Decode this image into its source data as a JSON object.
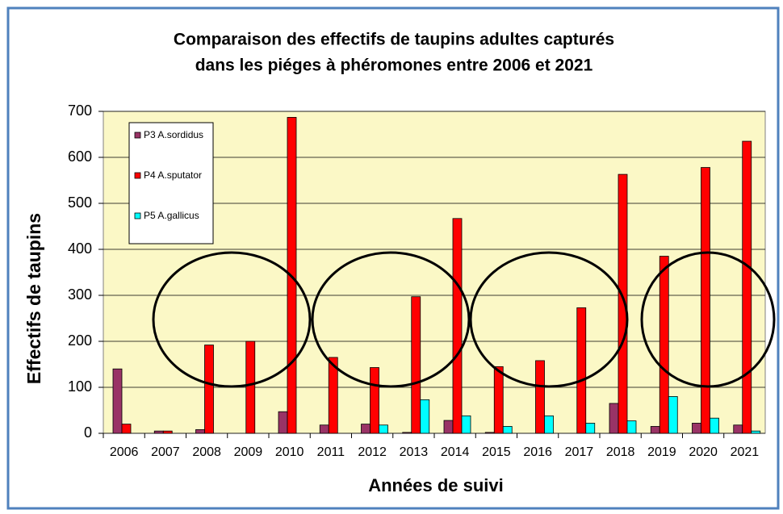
{
  "chart_data": {
    "type": "bar",
    "title_lines": [
      "Comparaison des effectifs de taupins adultes capturés",
      "dans les piéges à phéromones entre 2006 et 2021"
    ],
    "x_label": "Années de suivi",
    "y_label": "Effectifs de taupins",
    "categories": [
      "2006",
      "2007",
      "2008",
      "2009",
      "2010",
      "2011",
      "2012",
      "2013",
      "2014",
      "2015",
      "2016",
      "2017",
      "2018",
      "2019",
      "2020",
      "2021"
    ],
    "series": [
      {
        "name": "P3 A.sordidus",
        "color": "#993366",
        "values": [
          140,
          5,
          8,
          0,
          47,
          18,
          20,
          2,
          28,
          2,
          0,
          0,
          65,
          15,
          22,
          18
        ]
      },
      {
        "name": "P4 A.sputator",
        "color": "#ff0000",
        "values": [
          20,
          5,
          192,
          200,
          687,
          165,
          143,
          297,
          467,
          145,
          158,
          273,
          563,
          385,
          578,
          635
        ]
      },
      {
        "name": "P5 A.gallicus",
        "color": "#00ffff",
        "values": [
          0,
          0,
          0,
          0,
          0,
          0,
          18,
          73,
          38,
          15,
          38,
          22,
          27,
          80,
          33,
          5
        ]
      }
    ],
    "ylim": [
      0,
      700
    ],
    "yticks": [
      0,
      100,
      200,
      300,
      400,
      500,
      600,
      700
    ],
    "grid": true,
    "legend": "upper left"
  }
}
